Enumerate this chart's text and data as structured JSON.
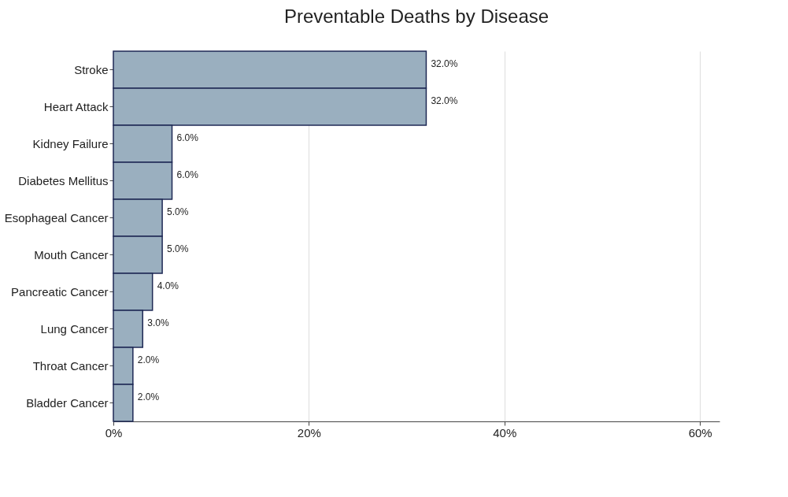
{
  "chart_data": {
    "type": "bar",
    "orientation": "horizontal",
    "title": "Preventable Deaths by Disease",
    "categories": [
      "Stroke",
      "Heart Attack",
      "Kidney Failure",
      "Diabetes Mellitus",
      "Esophageal Cancer",
      "Mouth Cancer",
      "Pancreatic Cancer",
      "Lung Cancer",
      "Throat Cancer",
      "Bladder Cancer"
    ],
    "values": [
      32,
      32,
      6,
      6,
      5,
      5,
      4,
      3,
      2,
      2
    ],
    "value_labels": [
      "32.0%",
      "32.0%",
      "6.0%",
      "6.0%",
      "5.0%",
      "5.0%",
      "4.0%",
      "3.0%",
      "2.0%",
      "2.0%"
    ],
    "color": "#9aafbf",
    "xlim": [
      0,
      62
    ],
    "xticks": [
      {
        "value": 0,
        "label": "0%"
      },
      {
        "value": 20,
        "label": "20%"
      },
      {
        "value": 40,
        "label": "40%"
      },
      {
        "value": 60,
        "label": "60%"
      }
    ],
    "grid": "x"
  }
}
